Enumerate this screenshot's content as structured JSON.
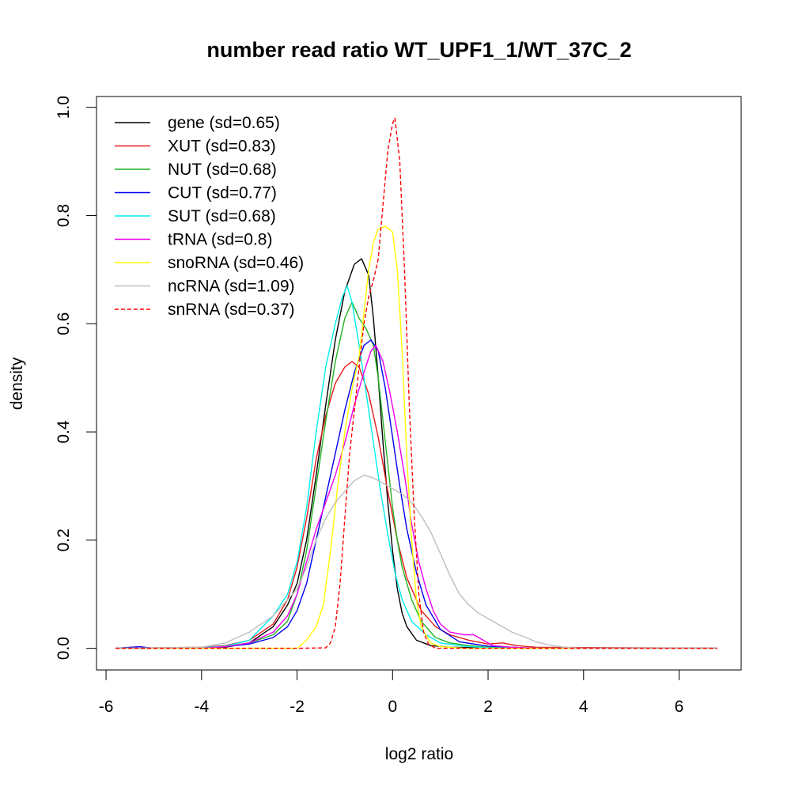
{
  "chart_data": {
    "type": "line",
    "title": "number read ratio WT_UPF1_1/WT_37C_2",
    "xlabel": "log2 ratio",
    "ylabel": "density",
    "xlim": [
      -6.2,
      7.3
    ],
    "ylim": [
      -0.04,
      1.02
    ],
    "xticks": [
      -6,
      -4,
      -2,
      0,
      2,
      4,
      6
    ],
    "yticks": [
      0.0,
      0.2,
      0.4,
      0.6,
      0.8,
      1.0
    ],
    "xtick_labels": [
      "-6",
      "-4",
      "-2",
      "0",
      "2",
      "4",
      "6"
    ],
    "ytick_labels": [
      "0.0",
      "0.2",
      "0.4",
      "0.6",
      "0.8",
      "1.0"
    ],
    "grid": false,
    "legend_position": "top-left",
    "series": [
      {
        "name": "gene (sd=0.65)",
        "color": "#000000",
        "dash": false,
        "points": [
          [
            -5.8,
            0
          ],
          [
            -4,
            0.001
          ],
          [
            -3.5,
            0.002
          ],
          [
            -3,
            0.01
          ],
          [
            -2.5,
            0.04
          ],
          [
            -2.2,
            0.08
          ],
          [
            -2,
            0.12
          ],
          [
            -1.8,
            0.2
          ],
          [
            -1.6,
            0.32
          ],
          [
            -1.4,
            0.45
          ],
          [
            -1.2,
            0.57
          ],
          [
            -1.0,
            0.66
          ],
          [
            -0.8,
            0.71
          ],
          [
            -0.65,
            0.72
          ],
          [
            -0.5,
            0.69
          ],
          [
            -0.4,
            0.61
          ],
          [
            -0.3,
            0.5
          ],
          [
            -0.2,
            0.38
          ],
          [
            -0.1,
            0.27
          ],
          [
            0,
            0.18
          ],
          [
            0.1,
            0.11
          ],
          [
            0.2,
            0.065
          ],
          [
            0.3,
            0.04
          ],
          [
            0.5,
            0.015
          ],
          [
            0.8,
            0.005
          ],
          [
            1.2,
            0.002
          ],
          [
            2,
            0.001
          ],
          [
            3,
            0
          ],
          [
            6.8,
            0
          ]
        ]
      },
      {
        "name": "XUT (sd=0.83)",
        "color": "#e41a1c",
        "dash": false,
        "points": [
          [
            -5.8,
            0
          ],
          [
            -4,
            0.002
          ],
          [
            -3.5,
            0.005
          ],
          [
            -3,
            0.015
          ],
          [
            -2.5,
            0.045
          ],
          [
            -2.2,
            0.09
          ],
          [
            -2,
            0.15
          ],
          [
            -1.8,
            0.24
          ],
          [
            -1.6,
            0.35
          ],
          [
            -1.4,
            0.43
          ],
          [
            -1.2,
            0.49
          ],
          [
            -1,
            0.52
          ],
          [
            -0.85,
            0.53
          ],
          [
            -0.7,
            0.52
          ],
          [
            -0.5,
            0.47
          ],
          [
            -0.3,
            0.39
          ],
          [
            -0.1,
            0.29
          ],
          [
            0.1,
            0.2
          ],
          [
            0.3,
            0.13
          ],
          [
            0.6,
            0.07
          ],
          [
            0.9,
            0.04
          ],
          [
            1.2,
            0.025
          ],
          [
            1.6,
            0.015
          ],
          [
            2,
            0.008
          ],
          [
            2.3,
            0.01
          ],
          [
            2.6,
            0.005
          ],
          [
            3,
            0.002
          ],
          [
            6.8,
            0
          ]
        ]
      },
      {
        "name": "NUT (sd=0.68)",
        "color": "#22b322",
        "dash": false,
        "points": [
          [
            -5.8,
            0
          ],
          [
            -4,
            0.001
          ],
          [
            -3.5,
            0.004
          ],
          [
            -3,
            0.01
          ],
          [
            -2.5,
            0.025
          ],
          [
            -2.2,
            0.05
          ],
          [
            -2,
            0.1
          ],
          [
            -1.8,
            0.18
          ],
          [
            -1.6,
            0.3
          ],
          [
            -1.4,
            0.42
          ],
          [
            -1.2,
            0.53
          ],
          [
            -1,
            0.61
          ],
          [
            -0.85,
            0.64
          ],
          [
            -0.7,
            0.61
          ],
          [
            -0.55,
            0.59
          ],
          [
            -0.4,
            0.56
          ],
          [
            -0.3,
            0.5
          ],
          [
            -0.2,
            0.42
          ],
          [
            -0.1,
            0.34
          ],
          [
            0,
            0.26
          ],
          [
            0.1,
            0.2
          ],
          [
            0.2,
            0.15
          ],
          [
            0.4,
            0.09
          ],
          [
            0.6,
            0.05
          ],
          [
            0.9,
            0.02
          ],
          [
            1.2,
            0.01
          ],
          [
            1.6,
            0.005
          ],
          [
            2,
            0.002
          ],
          [
            3,
            0
          ],
          [
            6.8,
            0
          ]
        ]
      },
      {
        "name": "CUT (sd=0.77)",
        "color": "#0000ee",
        "dash": false,
        "points": [
          [
            -5.8,
            0
          ],
          [
            -5.3,
            0.003
          ],
          [
            -5,
            0
          ],
          [
            -4,
            0.001
          ],
          [
            -3.5,
            0.003
          ],
          [
            -3,
            0.008
          ],
          [
            -2.5,
            0.02
          ],
          [
            -2.2,
            0.04
          ],
          [
            -2,
            0.07
          ],
          [
            -1.8,
            0.12
          ],
          [
            -1.6,
            0.2
          ],
          [
            -1.4,
            0.28
          ],
          [
            -1.2,
            0.36
          ],
          [
            -1,
            0.44
          ],
          [
            -0.8,
            0.51
          ],
          [
            -0.6,
            0.56
          ],
          [
            -0.45,
            0.57
          ],
          [
            -0.3,
            0.55
          ],
          [
            -0.15,
            0.48
          ],
          [
            0,
            0.39
          ],
          [
            0.15,
            0.3
          ],
          [
            0.3,
            0.22
          ],
          [
            0.5,
            0.14
          ],
          [
            0.7,
            0.08
          ],
          [
            1,
            0.035
          ],
          [
            1.4,
            0.012
          ],
          [
            2,
            0.004
          ],
          [
            3,
            0
          ],
          [
            6.8,
            0
          ]
        ]
      },
      {
        "name": "SUT (sd=0.68)",
        "color": "#00eeee",
        "dash": false,
        "points": [
          [
            -5.8,
            0
          ],
          [
            -4,
            0.001
          ],
          [
            -3.5,
            0.004
          ],
          [
            -3,
            0.015
          ],
          [
            -2.5,
            0.06
          ],
          [
            -2.2,
            0.1
          ],
          [
            -2,
            0.16
          ],
          [
            -1.8,
            0.26
          ],
          [
            -1.6,
            0.4
          ],
          [
            -1.4,
            0.52
          ],
          [
            -1.2,
            0.6
          ],
          [
            -1.05,
            0.65
          ],
          [
            -0.95,
            0.67
          ],
          [
            -0.85,
            0.64
          ],
          [
            -0.7,
            0.56
          ],
          [
            -0.55,
            0.47
          ],
          [
            -0.4,
            0.38
          ],
          [
            -0.25,
            0.29
          ],
          [
            -0.1,
            0.21
          ],
          [
            0.05,
            0.14
          ],
          [
            0.2,
            0.09
          ],
          [
            0.4,
            0.05
          ],
          [
            0.7,
            0.025
          ],
          [
            1,
            0.01
          ],
          [
            1.5,
            0.004
          ],
          [
            2,
            0.001
          ],
          [
            3,
            0
          ],
          [
            6.8,
            0
          ]
        ]
      },
      {
        "name": "tRNA (sd=0.8)",
        "color": "#ee00ee",
        "dash": false,
        "points": [
          [
            -5.8,
            0
          ],
          [
            -4,
            0
          ],
          [
            -3.5,
            0.003
          ],
          [
            -3,
            0.01
          ],
          [
            -2.5,
            0.03
          ],
          [
            -2.2,
            0.06
          ],
          [
            -2,
            0.1
          ],
          [
            -1.8,
            0.16
          ],
          [
            -1.6,
            0.22
          ],
          [
            -1.4,
            0.27
          ],
          [
            -1.2,
            0.32
          ],
          [
            -1,
            0.38
          ],
          [
            -0.8,
            0.45
          ],
          [
            -0.6,
            0.51
          ],
          [
            -0.45,
            0.55
          ],
          [
            -0.35,
            0.56
          ],
          [
            -0.2,
            0.53
          ],
          [
            -0.05,
            0.47
          ],
          [
            0.1,
            0.4
          ],
          [
            0.25,
            0.32
          ],
          [
            0.4,
            0.23
          ],
          [
            0.55,
            0.16
          ],
          [
            0.7,
            0.11
          ],
          [
            0.85,
            0.07
          ],
          [
            1,
            0.045
          ],
          [
            1.2,
            0.03
          ],
          [
            1.5,
            0.025
          ],
          [
            1.7,
            0.025
          ],
          [
            1.9,
            0.015
          ],
          [
            2.1,
            0.005
          ],
          [
            2.5,
            0.002
          ],
          [
            3,
            0
          ],
          [
            6.8,
            0
          ]
        ]
      },
      {
        "name": "snoRNA (sd=0.46)",
        "color": "#ffff00",
        "dash": false,
        "points": [
          [
            -5.8,
            0
          ],
          [
            -2.5,
            0
          ],
          [
            -2,
            0
          ],
          [
            -1.8,
            0.015
          ],
          [
            -1.6,
            0.04
          ],
          [
            -1.45,
            0.08
          ],
          [
            -1.3,
            0.18
          ],
          [
            -1.15,
            0.3
          ],
          [
            -1,
            0.4
          ],
          [
            -0.85,
            0.48
          ],
          [
            -0.7,
            0.54
          ],
          [
            -0.6,
            0.62
          ],
          [
            -0.5,
            0.7
          ],
          [
            -0.4,
            0.75
          ],
          [
            -0.3,
            0.775
          ],
          [
            -0.15,
            0.78
          ],
          [
            0,
            0.77
          ],
          [
            0.1,
            0.7
          ],
          [
            0.2,
            0.55
          ],
          [
            0.3,
            0.35
          ],
          [
            0.4,
            0.2
          ],
          [
            0.5,
            0.09
          ],
          [
            0.6,
            0.04
          ],
          [
            0.8,
            0.01
          ],
          [
            1,
            0.003
          ],
          [
            1.5,
            0
          ],
          [
            6.8,
            0
          ]
        ]
      },
      {
        "name": "ncRNA (sd=1.09)",
        "color": "#bebebe",
        "dash": false,
        "points": [
          [
            -5.8,
            0
          ],
          [
            -4,
            0.002
          ],
          [
            -3.5,
            0.01
          ],
          [
            -3,
            0.03
          ],
          [
            -2.5,
            0.06
          ],
          [
            -2.2,
            0.09
          ],
          [
            -2,
            0.11
          ],
          [
            -1.8,
            0.15
          ],
          [
            -1.6,
            0.2
          ],
          [
            -1.4,
            0.24
          ],
          [
            -1.2,
            0.27
          ],
          [
            -1,
            0.29
          ],
          [
            -0.8,
            0.31
          ],
          [
            -0.6,
            0.32
          ],
          [
            -0.4,
            0.315
          ],
          [
            -0.2,
            0.305
          ],
          [
            0,
            0.295
          ],
          [
            0.2,
            0.285
          ],
          [
            0.4,
            0.27
          ],
          [
            0.6,
            0.245
          ],
          [
            0.8,
            0.215
          ],
          [
            1,
            0.175
          ],
          [
            1.2,
            0.135
          ],
          [
            1.4,
            0.1
          ],
          [
            1.6,
            0.08
          ],
          [
            1.8,
            0.065
          ],
          [
            2,
            0.055
          ],
          [
            2.2,
            0.045
          ],
          [
            2.5,
            0.03
          ],
          [
            2.8,
            0.02
          ],
          [
            3,
            0.012
          ],
          [
            3.3,
            0.006
          ],
          [
            3.6,
            0.002
          ],
          [
            4,
            0
          ],
          [
            6.8,
            0
          ]
        ]
      },
      {
        "name": "snRNA (sd=0.37)",
        "color": "#ff0000",
        "dash": true,
        "points": [
          [
            -5.8,
            0
          ],
          [
            -2,
            0
          ],
          [
            -1.4,
            0.001
          ],
          [
            -1.3,
            0.01
          ],
          [
            -1.2,
            0.04
          ],
          [
            -1.1,
            0.12
          ],
          [
            -1,
            0.24
          ],
          [
            -0.9,
            0.36
          ],
          [
            -0.8,
            0.44
          ],
          [
            -0.7,
            0.52
          ],
          [
            -0.6,
            0.6
          ],
          [
            -0.5,
            0.65
          ],
          [
            -0.4,
            0.68
          ],
          [
            -0.3,
            0.72
          ],
          [
            -0.2,
            0.82
          ],
          [
            -0.1,
            0.92
          ],
          [
            0,
            0.97
          ],
          [
            0.05,
            0.98
          ],
          [
            0.15,
            0.9
          ],
          [
            0.25,
            0.7
          ],
          [
            0.35,
            0.45
          ],
          [
            0.45,
            0.25
          ],
          [
            0.55,
            0.1
          ],
          [
            0.65,
            0.03
          ],
          [
            0.75,
            0.008
          ],
          [
            0.9,
            0
          ],
          [
            6.8,
            0
          ]
        ]
      }
    ]
  }
}
